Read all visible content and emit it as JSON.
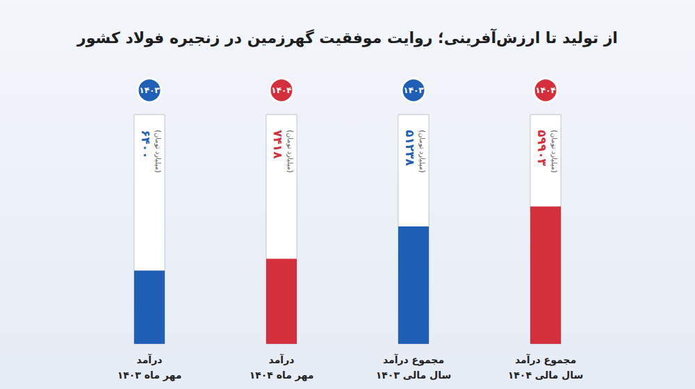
{
  "chart_data": {
    "type": "bar",
    "title": "از تولید تا ارزش‌آفرینی؛ روایت موفقیت گهرزمین در زنجیره فولاد کشور",
    "categories": [
      "درآمد\nمهر ماه ۱۴۰۳",
      "درآمد\nمهر ماه ۱۴۰۴",
      "مجموع درآمد\nسال مالی ۱۴۰۳",
      "مجموع درآمد\nسال مالی ۱۴۰۴"
    ],
    "badges": [
      "۱۴۰۳",
      "۱۴۰۴",
      "۱۴۰۳",
      "۱۴۰۴"
    ],
    "unit": "(میلیارد تومان)",
    "series": [
      {
        "values": [
          6400,
          7418,
          null,
          null
        ],
        "value_labels": [
          "۶۴۰۰",
          "۷۴۱۸",
          null,
          null
        ],
        "axis": "y2"
      },
      {
        "values": [
          null,
          null,
          51238,
          59903
        ],
        "value_labels": [
          null,
          null,
          "۵۱۲۳۸",
          "۵۹۹۰۳"
        ]
      }
    ],
    "colors": [
      "#1f5fb5",
      "#d3303c",
      "#1f5fb5",
      "#d3303c"
    ],
    "ylim": [
      0,
      100000
    ],
    "yticks": [
      0,
      100000
    ],
    "y2lim": [
      0,
      20000
    ],
    "y2ticks": [
      0,
      20000
    ],
    "grid": false,
    "data_labels": true,
    "tick_labels": "x"
  }
}
